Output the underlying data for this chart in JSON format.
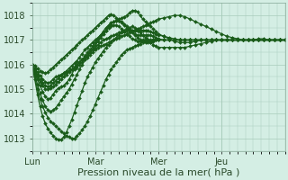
{
  "title": "",
  "xlabel": "Pression niveau de la mer( hPa )",
  "ylabel": "",
  "background_color": "#d4eee4",
  "plot_bg_color": "#d4eee4",
  "grid_color": "#a8ccbb",
  "line_color": "#1a5c1a",
  "marker": "D",
  "markersize": 2.0,
  "linewidth": 0.9,
  "ylim": [
    1012.5,
    1018.5
  ],
  "yticks": [
    1013,
    1014,
    1015,
    1016,
    1017,
    1018
  ],
  "xtick_labels": [
    "Lun",
    "Mar",
    "Mer",
    "Jeu"
  ],
  "xtick_hours": [
    0,
    48,
    96,
    144
  ],
  "total_hours": 192,
  "xlabel_fontsize": 8,
  "ytick_fontsize": 7,
  "xtick_fontsize": 7,
  "series_hours": [
    [
      0,
      2,
      4,
      6,
      8,
      10,
      12,
      14,
      16,
      18,
      20,
      22,
      24,
      26,
      28,
      30,
      32,
      34,
      36,
      38,
      40,
      42,
      44,
      46,
      48,
      50,
      52,
      54,
      56,
      58,
      60,
      62,
      64,
      66,
      68,
      70,
      72,
      74,
      76,
      78,
      80,
      82,
      84,
      86,
      88,
      90,
      92,
      94,
      96,
      100,
      104,
      108,
      112,
      116,
      120,
      124,
      128,
      132,
      136,
      140,
      144,
      148,
      152,
      156,
      160,
      164,
      168,
      172,
      176,
      180,
      184,
      188,
      192
    ],
    [
      0,
      2,
      4,
      6,
      8,
      10,
      12,
      14,
      16,
      18,
      20,
      22,
      24,
      26,
      28,
      30,
      32,
      34,
      36,
      38,
      40,
      42,
      44,
      46,
      48,
      50,
      52,
      54,
      56,
      58,
      60,
      62,
      64,
      66,
      68,
      70,
      72,
      74,
      76,
      78,
      80,
      82,
      84,
      86,
      88,
      90,
      92,
      94,
      96,
      100,
      104,
      108,
      112,
      116,
      120,
      124,
      128,
      132,
      136,
      140,
      144,
      148,
      152,
      156,
      160,
      164,
      168,
      172,
      176,
      180,
      184,
      188,
      192
    ],
    [
      0,
      2,
      4,
      6,
      8,
      10,
      12,
      14,
      16,
      18,
      20,
      22,
      24,
      26,
      28,
      30,
      32,
      34,
      36,
      38,
      40,
      42,
      44,
      46,
      48,
      50,
      52,
      54,
      56,
      58,
      60,
      62,
      64,
      66,
      68,
      70,
      72,
      74,
      76,
      78,
      80,
      82,
      84,
      86,
      88,
      90,
      92,
      94,
      96,
      100,
      104,
      108,
      112,
      116,
      120,
      124,
      128,
      132,
      136,
      140,
      144,
      148,
      152,
      156,
      160,
      164,
      168,
      172,
      176,
      180,
      184,
      188,
      192
    ],
    [
      0,
      2,
      4,
      6,
      8,
      10,
      12,
      14,
      16,
      18,
      20,
      22,
      24,
      26,
      28,
      30,
      32,
      34,
      36,
      38,
      40,
      42,
      44,
      46,
      48,
      50,
      52,
      54,
      56,
      58,
      60,
      62,
      64,
      66,
      68,
      70,
      72,
      74,
      76,
      78,
      80,
      82,
      84,
      86,
      88,
      90,
      92,
      94,
      96,
      100,
      104,
      108,
      112,
      116,
      120,
      124,
      128,
      132,
      136,
      140,
      144,
      148,
      152,
      156,
      160,
      164,
      168,
      172,
      176,
      180,
      184,
      188,
      192
    ],
    [
      0,
      2,
      4,
      6,
      8,
      10,
      12,
      14,
      16,
      18,
      20,
      22,
      24,
      26,
      28,
      30,
      32,
      34,
      36,
      38,
      40,
      42,
      44,
      46,
      48,
      50,
      52,
      54,
      56,
      58,
      60,
      62,
      64,
      66,
      68,
      70,
      72,
      74,
      76,
      78,
      80,
      82,
      84,
      86,
      88,
      90,
      92,
      94,
      96,
      100,
      104,
      108,
      112,
      116,
      120,
      124,
      128,
      132,
      136,
      140,
      144,
      148,
      152,
      156,
      160,
      164,
      168,
      172,
      176,
      180,
      184,
      188,
      192
    ],
    [
      0,
      2,
      4,
      6,
      8,
      10,
      12,
      14,
      16,
      18,
      20,
      22,
      24,
      26,
      28,
      30,
      32,
      34,
      36,
      38,
      40,
      42,
      44,
      46,
      48,
      50,
      52,
      54,
      56,
      58,
      60,
      62,
      64,
      66,
      68,
      70,
      72,
      74,
      76,
      78,
      80,
      82,
      84,
      86,
      88,
      90,
      92,
      94,
      96,
      100,
      104,
      108,
      112,
      116,
      120,
      124,
      128,
      132,
      136,
      140,
      144,
      148,
      152,
      156,
      160,
      164,
      168,
      172,
      176,
      180,
      184,
      188,
      192
    ],
    [
      0,
      2,
      4,
      6,
      8,
      10,
      12,
      14,
      16,
      18,
      20,
      22,
      24,
      26,
      28,
      30,
      32,
      34,
      36,
      38,
      40,
      42,
      44,
      46,
      48,
      50,
      52,
      54,
      56,
      58,
      60,
      62,
      64,
      66,
      68,
      70,
      72,
      74,
      76,
      78,
      80,
      82,
      84,
      86,
      88,
      90,
      92,
      94,
      96,
      100,
      104,
      108,
      112,
      116,
      120,
      124,
      128,
      132,
      136,
      140,
      144,
      148,
      152,
      156,
      160,
      164,
      168,
      172,
      176,
      180,
      184,
      188,
      192
    ],
    [
      0,
      2,
      4,
      6,
      8,
      10,
      12,
      14,
      16,
      18,
      20,
      22,
      24,
      26,
      28,
      30,
      32,
      34,
      36,
      38,
      40,
      42,
      44,
      46,
      48,
      50,
      52,
      54,
      56,
      58,
      60,
      62,
      64,
      66,
      68,
      70,
      72,
      74,
      76,
      78,
      80,
      82,
      84,
      86,
      88,
      90,
      92,
      94,
      96,
      100,
      104,
      108,
      112,
      116,
      120,
      124,
      128,
      132,
      136,
      140,
      144,
      148,
      152,
      156,
      160,
      164,
      168,
      172,
      176,
      180,
      184,
      188,
      192
    ]
  ],
  "series_values": [
    [
      1016.0,
      1015.85,
      1015.7,
      1015.55,
      1015.4,
      1015.3,
      1015.25,
      1015.3,
      1015.4,
      1015.5,
      1015.55,
      1015.6,
      1015.65,
      1015.7,
      1015.75,
      1015.8,
      1015.85,
      1015.9,
      1016.0,
      1016.1,
      1016.2,
      1016.3,
      1016.4,
      1016.5,
      1016.6,
      1016.7,
      1016.75,
      1016.8,
      1016.85,
      1016.9,
      1016.95,
      1017.0,
      1017.05,
      1017.1,
      1017.15,
      1017.2,
      1017.25,
      1017.3,
      1017.35,
      1017.4,
      1017.45,
      1017.5,
      1017.55,
      1017.6,
      1017.65,
      1017.7,
      1017.75,
      1017.8,
      1017.85,
      1017.9,
      1017.95,
      1018.0,
      1018.0,
      1017.95,
      1017.85,
      1017.75,
      1017.65,
      1017.55,
      1017.45,
      1017.35,
      1017.25,
      1017.15,
      1017.1,
      1017.05,
      1017.0,
      1017.0,
      1017.0,
      1017.05,
      1017.05,
      1017.0,
      1017.0,
      1017.0,
      1017.0
    ],
    [
      1016.0,
      1015.7,
      1015.4,
      1015.15,
      1014.9,
      1014.7,
      1014.6,
      1014.65,
      1014.8,
      1014.95,
      1015.05,
      1015.1,
      1015.15,
      1015.25,
      1015.4,
      1015.6,
      1015.8,
      1015.95,
      1016.1,
      1016.2,
      1016.35,
      1016.5,
      1016.6,
      1016.75,
      1016.9,
      1017.05,
      1017.2,
      1017.35,
      1017.5,
      1017.6,
      1017.7,
      1017.75,
      1017.8,
      1017.85,
      1017.9,
      1017.95,
      1018.0,
      1018.1,
      1018.2,
      1018.2,
      1018.15,
      1018.0,
      1017.85,
      1017.75,
      1017.65,
      1017.55,
      1017.45,
      1017.35,
      1017.25,
      1017.15,
      1017.05,
      1016.95,
      1016.9,
      1016.9,
      1016.9,
      1016.95,
      1017.0,
      1017.0,
      1017.0,
      1017.0,
      1017.0,
      1017.0,
      1017.0,
      1017.0,
      1017.0,
      1017.0,
      1017.0,
      1017.0,
      1017.0,
      1017.0,
      1017.0,
      1017.0,
      1017.0
    ],
    [
      1016.0,
      1015.5,
      1015.0,
      1014.6,
      1014.3,
      1014.05,
      1013.85,
      1013.7,
      1013.6,
      1013.5,
      1013.4,
      1013.3,
      1013.2,
      1013.1,
      1013.05,
      1013.0,
      1013.0,
      1013.1,
      1013.2,
      1013.35,
      1013.5,
      1013.7,
      1013.9,
      1014.15,
      1014.4,
      1014.65,
      1014.9,
      1015.15,
      1015.4,
      1015.6,
      1015.8,
      1015.95,
      1016.1,
      1016.25,
      1016.4,
      1016.5,
      1016.6,
      1016.65,
      1016.7,
      1016.75,
      1016.8,
      1016.85,
      1016.9,
      1016.9,
      1016.9,
      1016.9,
      1016.95,
      1017.0,
      1017.0,
      1017.0,
      1017.0,
      1017.0,
      1017.0,
      1017.0,
      1017.0,
      1017.0,
      1017.0,
      1017.0,
      1017.0,
      1017.0,
      1017.0,
      1017.0,
      1017.0,
      1017.0,
      1017.0,
      1017.0,
      1017.0,
      1017.0,
      1017.0,
      1017.0,
      1017.0,
      1017.0,
      1017.0
    ],
    [
      1016.0,
      1015.75,
      1015.5,
      1015.3,
      1015.15,
      1015.0,
      1015.0,
      1015.05,
      1015.1,
      1015.2,
      1015.3,
      1015.4,
      1015.5,
      1015.6,
      1015.7,
      1015.8,
      1015.9,
      1016.0,
      1016.1,
      1016.2,
      1016.3,
      1016.4,
      1016.5,
      1016.6,
      1016.7,
      1016.8,
      1016.9,
      1017.0,
      1017.05,
      1017.1,
      1017.15,
      1017.2,
      1017.25,
      1017.3,
      1017.35,
      1017.4,
      1017.45,
      1017.5,
      1017.55,
      1017.5,
      1017.4,
      1017.3,
      1017.2,
      1017.1,
      1017.0,
      1016.9,
      1016.8,
      1016.75,
      1016.7,
      1016.7,
      1016.7,
      1016.7,
      1016.7,
      1016.7,
      1016.75,
      1016.8,
      1016.85,
      1016.9,
      1016.95,
      1017.0,
      1017.0,
      1017.0,
      1017.0,
      1017.0,
      1017.0,
      1017.0,
      1017.0,
      1017.0,
      1017.0,
      1017.0,
      1017.0,
      1017.0,
      1017.0
    ],
    [
      1016.0,
      1015.8,
      1015.6,
      1015.4,
      1015.25,
      1015.15,
      1015.1,
      1015.15,
      1015.25,
      1015.35,
      1015.45,
      1015.55,
      1015.65,
      1015.75,
      1015.85,
      1015.95,
      1016.05,
      1016.15,
      1016.3,
      1016.45,
      1016.6,
      1016.7,
      1016.8,
      1016.9,
      1017.0,
      1017.1,
      1017.2,
      1017.3,
      1017.4,
      1017.5,
      1017.55,
      1017.6,
      1017.6,
      1017.55,
      1017.45,
      1017.35,
      1017.25,
      1017.15,
      1017.05,
      1017.0,
      1016.95,
      1016.95,
      1016.95,
      1016.95,
      1016.95,
      1016.95,
      1017.0,
      1017.0,
      1017.0,
      1017.0,
      1017.0,
      1017.0,
      1017.0,
      1017.0,
      1017.0,
      1017.0,
      1017.0,
      1017.0,
      1017.0,
      1017.0,
      1017.0,
      1017.0,
      1017.0,
      1017.0,
      1017.0,
      1017.0,
      1017.0,
      1017.0,
      1017.0,
      1017.0,
      1017.0,
      1017.0,
      1017.0
    ],
    [
      1016.0,
      1015.6,
      1015.2,
      1014.85,
      1014.55,
      1014.3,
      1014.15,
      1014.1,
      1014.15,
      1014.25,
      1014.4,
      1014.55,
      1014.7,
      1014.85,
      1015.0,
      1015.2,
      1015.4,
      1015.6,
      1015.8,
      1016.0,
      1016.2,
      1016.35,
      1016.5,
      1016.65,
      1016.8,
      1016.95,
      1017.1,
      1017.25,
      1017.4,
      1017.55,
      1017.65,
      1017.75,
      1017.8,
      1017.8,
      1017.75,
      1017.65,
      1017.55,
      1017.45,
      1017.35,
      1017.25,
      1017.2,
      1017.2,
      1017.2,
      1017.2,
      1017.2,
      1017.2,
      1017.15,
      1017.1,
      1017.05,
      1017.0,
      1017.0,
      1017.0,
      1017.0,
      1017.0,
      1017.0,
      1017.0,
      1017.0,
      1017.0,
      1017.0,
      1017.0,
      1017.0,
      1017.0,
      1017.0,
      1017.0,
      1017.0,
      1017.0,
      1017.0,
      1017.0,
      1017.0,
      1017.0,
      1017.0,
      1017.0,
      1017.0
    ],
    [
      1016.0,
      1015.4,
      1014.8,
      1014.3,
      1013.9,
      1013.6,
      1013.4,
      1013.25,
      1013.1,
      1013.0,
      1012.95,
      1012.95,
      1013.05,
      1013.25,
      1013.5,
      1013.75,
      1014.05,
      1014.35,
      1014.65,
      1014.95,
      1015.25,
      1015.5,
      1015.7,
      1015.9,
      1016.1,
      1016.25,
      1016.4,
      1016.55,
      1016.7,
      1016.8,
      1016.9,
      1017.0,
      1017.1,
      1017.2,
      1017.3,
      1017.35,
      1017.4,
      1017.4,
      1017.4,
      1017.4,
      1017.4,
      1017.4,
      1017.4,
      1017.4,
      1017.4,
      1017.35,
      1017.3,
      1017.25,
      1017.2,
      1017.15,
      1017.1,
      1017.05,
      1017.0,
      1017.0,
      1017.0,
      1017.0,
      1017.0,
      1017.0,
      1017.0,
      1017.0,
      1017.0,
      1017.0,
      1017.0,
      1017.0,
      1017.0,
      1017.0,
      1017.0,
      1017.0,
      1017.0,
      1017.0,
      1017.0,
      1017.0,
      1017.0
    ],
    [
      1016.0,
      1015.95,
      1015.85,
      1015.75,
      1015.7,
      1015.65,
      1015.7,
      1015.8,
      1015.9,
      1016.0,
      1016.1,
      1016.2,
      1016.3,
      1016.4,
      1016.5,
      1016.6,
      1016.7,
      1016.8,
      1016.9,
      1017.0,
      1017.1,
      1017.2,
      1017.3,
      1017.4,
      1017.5,
      1017.6,
      1017.7,
      1017.8,
      1017.9,
      1018.0,
      1018.05,
      1018.0,
      1017.9,
      1017.8,
      1017.7,
      1017.6,
      1017.5,
      1017.4,
      1017.3,
      1017.2,
      1017.1,
      1017.0,
      1017.0,
      1017.0,
      1017.0,
      1017.0,
      1017.0,
      1017.0,
      1017.0,
      1017.0,
      1017.0,
      1017.0,
      1017.0,
      1017.0,
      1017.0,
      1017.0,
      1017.0,
      1017.0,
      1017.0,
      1017.0,
      1017.0,
      1017.0,
      1017.0,
      1017.0,
      1017.0,
      1017.0,
      1017.0,
      1017.0,
      1017.0,
      1017.0,
      1017.0,
      1017.0,
      1017.0
    ]
  ]
}
